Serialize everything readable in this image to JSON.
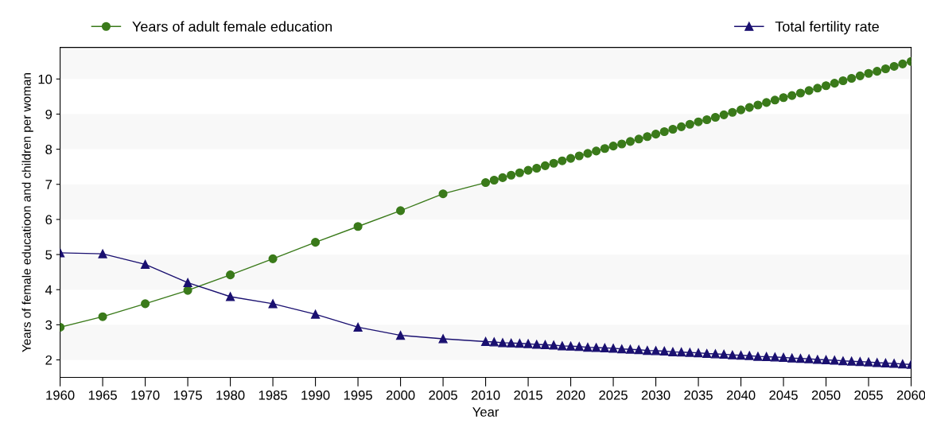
{
  "chart_data": {
    "type": "line",
    "xlabel": "Year",
    "ylabel": "Years of female educatioon and children per woman",
    "x": [
      1960,
      1965,
      1970,
      1975,
      1980,
      1985,
      1990,
      1995,
      2000,
      2005,
      2010,
      2011,
      2012,
      2013,
      2014,
      2015,
      2016,
      2017,
      2018,
      2019,
      2020,
      2021,
      2022,
      2023,
      2024,
      2025,
      2026,
      2027,
      2028,
      2029,
      2030,
      2031,
      2032,
      2033,
      2034,
      2035,
      2036,
      2037,
      2038,
      2039,
      2040,
      2041,
      2042,
      2043,
      2044,
      2045,
      2046,
      2047,
      2048,
      2049,
      2050,
      2051,
      2052,
      2053,
      2054,
      2055,
      2056,
      2057,
      2058,
      2059,
      2060
    ],
    "series": [
      {
        "name": "Years of adult female education",
        "color": "#3a7a1a",
        "marker": "circle",
        "values": [
          2.93,
          3.23,
          3.6,
          3.98,
          4.42,
          4.88,
          5.35,
          5.8,
          6.25,
          6.73,
          7.05,
          7.12,
          7.19,
          7.26,
          7.33,
          7.4,
          7.46,
          7.53,
          7.6,
          7.67,
          7.74,
          7.81,
          7.88,
          7.95,
          8.02,
          8.09,
          8.15,
          8.22,
          8.29,
          8.36,
          8.43,
          8.5,
          8.57,
          8.64,
          8.71,
          8.78,
          8.84,
          8.91,
          8.98,
          9.05,
          9.12,
          9.19,
          9.26,
          9.33,
          9.4,
          9.47,
          9.53,
          9.6,
          9.67,
          9.74,
          9.81,
          9.88,
          9.95,
          10.02,
          10.09,
          10.16,
          10.22,
          10.29,
          10.36,
          10.43,
          10.5
        ]
      },
      {
        "name": "Total fertility rate",
        "color": "#1a1070",
        "marker": "triangle",
        "values": [
          5.05,
          5.02,
          4.72,
          4.2,
          3.8,
          3.6,
          3.3,
          2.93,
          2.7,
          2.6,
          2.52,
          2.51,
          2.49,
          2.48,
          2.47,
          2.46,
          2.44,
          2.43,
          2.42,
          2.4,
          2.39,
          2.38,
          2.36,
          2.35,
          2.34,
          2.33,
          2.31,
          2.3,
          2.29,
          2.27,
          2.26,
          2.25,
          2.23,
          2.22,
          2.21,
          2.2,
          2.18,
          2.17,
          2.16,
          2.14,
          2.13,
          2.12,
          2.1,
          2.09,
          2.08,
          2.07,
          2.05,
          2.04,
          2.03,
          2.01,
          2.0,
          1.99,
          1.97,
          1.96,
          1.95,
          1.94,
          1.92,
          1.91,
          1.9,
          1.88,
          1.87
        ]
      }
    ],
    "xlim": [
      1960,
      2060
    ],
    "xticks": [
      1960,
      1965,
      1970,
      1975,
      1980,
      1985,
      1990,
      1995,
      2000,
      2005,
      2010,
      2015,
      2020,
      2025,
      2030,
      2035,
      2040,
      2045,
      2050,
      2055,
      2060
    ],
    "ylim": [
      1.5,
      10.9
    ],
    "yticks": [
      2,
      3,
      4,
      5,
      6,
      7,
      8,
      9,
      10
    ],
    "bands": [
      {
        "axis": "y",
        "from": 2,
        "to": 3,
        "color": "#f8f8f8"
      },
      {
        "axis": "y",
        "from": 4,
        "to": 5,
        "color": "#f8f8f8"
      },
      {
        "axis": "y",
        "from": 6,
        "to": 7,
        "color": "#f8f8f8"
      },
      {
        "axis": "y",
        "from": 8,
        "to": 9,
        "color": "#f8f8f8"
      },
      {
        "axis": "y",
        "from": 10,
        "to": 10.9,
        "color": "#f8f8f8"
      }
    ],
    "legend": "top",
    "line_style": "solid"
  }
}
